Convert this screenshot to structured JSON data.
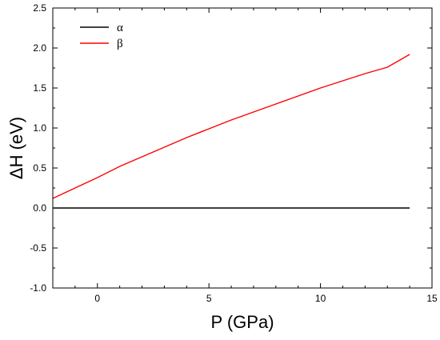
{
  "chart_data": {
    "type": "line",
    "title": "",
    "xlabel": "P (GPa)",
    "ylabel": "ΔH (eV)",
    "xlim": [
      -2,
      15
    ],
    "ylim": [
      -1.0,
      2.5
    ],
    "x_ticks": [
      0,
      5,
      10,
      15
    ],
    "y_ticks": [
      -1.0,
      -0.5,
      0.0,
      0.5,
      1.0,
      1.5,
      2.0,
      2.5
    ],
    "x_tick_labels": [
      "0",
      "5",
      "10",
      "15"
    ],
    "y_tick_labels": [
      "-1.0",
      "-0.5",
      "0.0",
      "0.5",
      "1.0",
      "1.5",
      "2.0",
      "2.5"
    ],
    "legend_position": "top-left",
    "grid": false,
    "series": [
      {
        "name": "α",
        "color": "#000000",
        "x": [
          -2,
          0,
          2,
          4,
          6,
          8,
          10,
          12,
          14
        ],
        "y": [
          0.0,
          0.0,
          0.0,
          0.0,
          0.0,
          0.0,
          0.0,
          0.0,
          0.0
        ]
      },
      {
        "name": "β",
        "color": "#ff0000",
        "x": [
          -2,
          -1,
          0,
          1,
          2,
          3,
          4,
          5,
          6,
          7,
          8,
          9,
          10,
          11,
          12,
          13,
          14
        ],
        "y": [
          0.12,
          0.25,
          0.38,
          0.52,
          0.64,
          0.76,
          0.88,
          0.99,
          1.1,
          1.2,
          1.3,
          1.4,
          1.5,
          1.59,
          1.68,
          1.76,
          1.92
        ]
      }
    ]
  }
}
